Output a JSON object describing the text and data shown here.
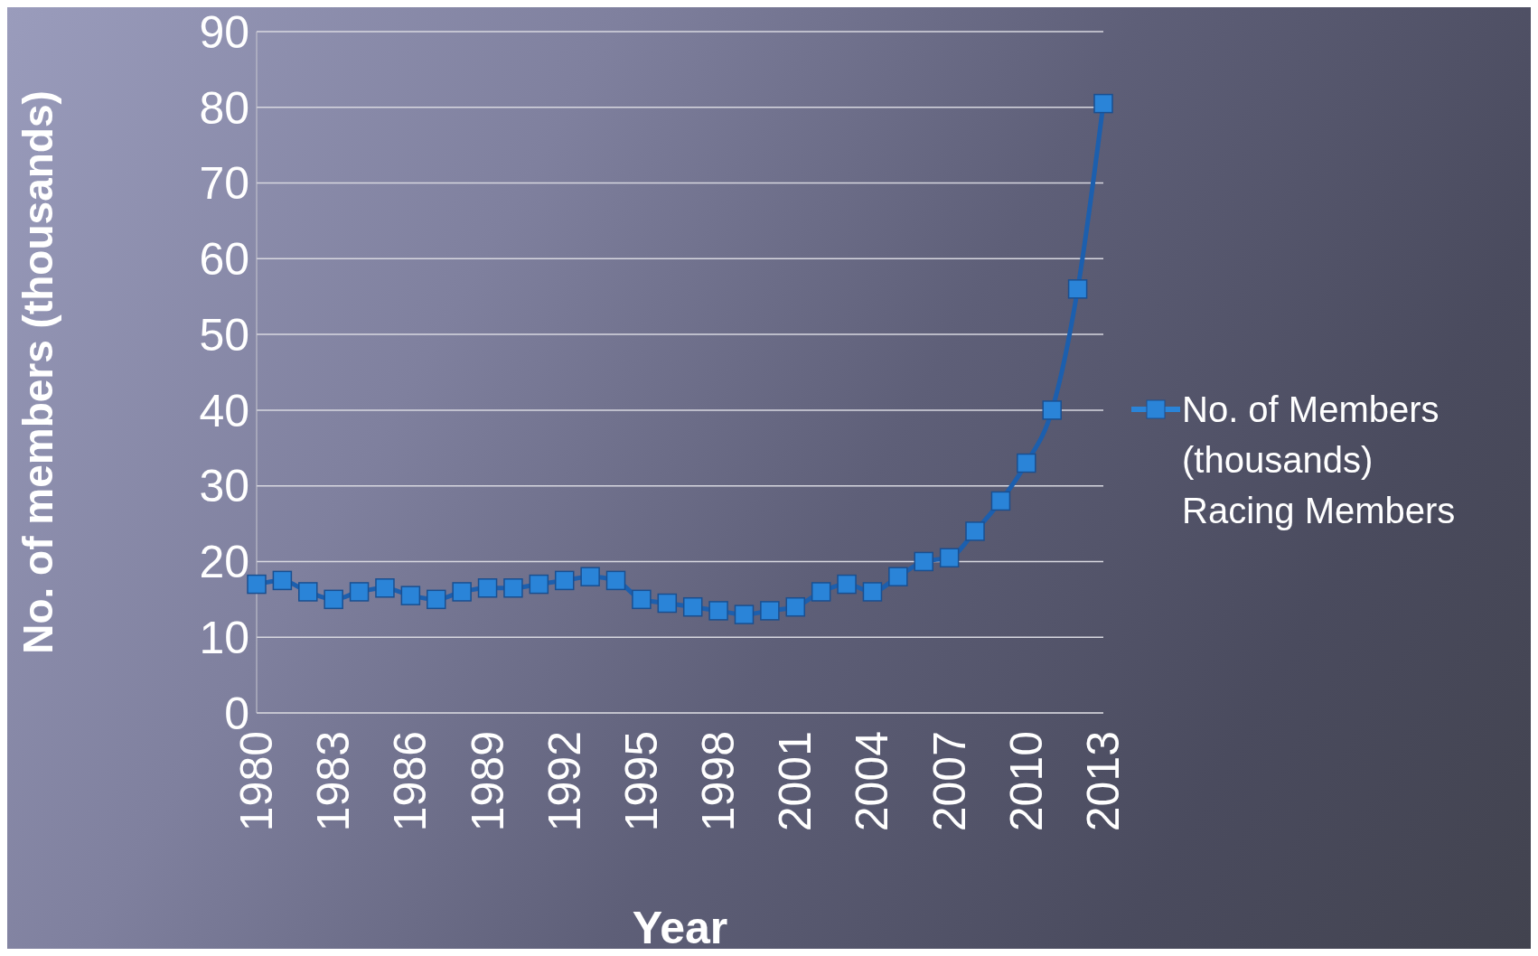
{
  "chart_data": {
    "type": "line",
    "xlabel": "Year",
    "ylabel": "No. of members (thousands)",
    "categories": [
      "1980",
      null,
      null,
      "1983",
      null,
      null,
      "1986",
      null,
      null,
      "1989",
      null,
      null,
      "1992",
      null,
      null,
      "1995",
      null,
      null,
      "1998",
      null,
      null,
      "2001",
      null,
      null,
      "2004",
      null,
      null,
      "2007",
      null,
      null,
      "2010",
      null,
      null,
      "2013"
    ],
    "series": [
      {
        "name": "No. of Members (thousands)",
        "color": "#2a84d8",
        "values": [
          17,
          17.5,
          16,
          15,
          16,
          16.5,
          15.5,
          15,
          16,
          16.5,
          16.5,
          17,
          17.5,
          18,
          17.5,
          15,
          14.5,
          14,
          13.5,
          13,
          13.5,
          14,
          16,
          17,
          16,
          18,
          20,
          20.5,
          24,
          28,
          33,
          40,
          56,
          80.5
        ]
      }
    ],
    "annotations": [
      "Racing Members"
    ],
    "ylim": [
      0,
      90
    ],
    "yticks": [
      0,
      10,
      20,
      30,
      40,
      50,
      60,
      70,
      80,
      90
    ],
    "grid": "y",
    "legend": "right",
    "marker": "square",
    "line_style": "solid"
  }
}
